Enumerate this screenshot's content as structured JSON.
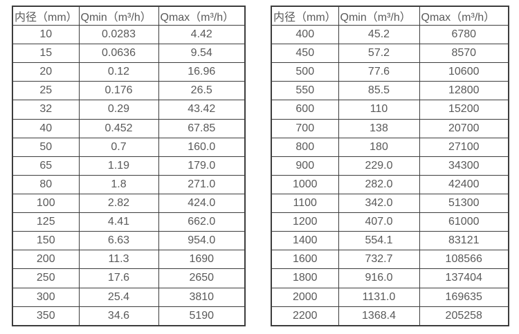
{
  "colors": {
    "background": "#ffffff",
    "border": "#3c3c3c",
    "text": "#595959"
  },
  "tables": [
    {
      "name": "flow-rate-table-left",
      "headers": [
        "内径（mm）",
        "Qmin（m³/h）",
        "Qmax（m³/h）"
      ],
      "rows": [
        [
          "10",
          "0.0283",
          "4.42"
        ],
        [
          "15",
          "0.0636",
          "9.54"
        ],
        [
          "20",
          "0.12",
          "16.96"
        ],
        [
          "25",
          "0.176",
          "26.5"
        ],
        [
          "32",
          "0.29",
          "43.42"
        ],
        [
          "40",
          "0.452",
          "67.85"
        ],
        [
          "50",
          "0.7",
          "160.0"
        ],
        [
          "65",
          "1.19",
          "179.0"
        ],
        [
          "80",
          "1.8",
          "271.0"
        ],
        [
          "100",
          "2.82",
          "424.0"
        ],
        [
          "125",
          "4.41",
          "662.0"
        ],
        [
          "150",
          "6.63",
          "954.0"
        ],
        [
          "200",
          "11.3",
          "1690"
        ],
        [
          "250",
          "17.6",
          "2650"
        ],
        [
          "300",
          "25.4",
          "3810"
        ],
        [
          "350",
          "34.6",
          "5190"
        ]
      ]
    },
    {
      "name": "flow-rate-table-right",
      "headers": [
        "内径（mm）",
        "Qmin（m³/h）",
        "Qmax（m³/h）"
      ],
      "rows": [
        [
          "400",
          "45.2",
          "6780"
        ],
        [
          "450",
          "57.2",
          "8570"
        ],
        [
          "500",
          "77.6",
          "10600"
        ],
        [
          "550",
          "85.5",
          "12800"
        ],
        [
          "600",
          "110",
          "15200"
        ],
        [
          "700",
          "138",
          "20700"
        ],
        [
          "800",
          "180",
          "27100"
        ],
        [
          "900",
          "229.0",
          "34300"
        ],
        [
          "1000",
          "282.0",
          "42400"
        ],
        [
          "1100",
          "342.0",
          "51300"
        ],
        [
          "1200",
          "407.0",
          "61000"
        ],
        [
          "1400",
          "554.1",
          "83121"
        ],
        [
          "1600",
          "732.7",
          "108566"
        ],
        [
          "1800",
          "916.0",
          "137404"
        ],
        [
          "2000",
          "1131.0",
          "169635"
        ],
        [
          "2200",
          "1368.4",
          "205258"
        ]
      ]
    }
  ]
}
